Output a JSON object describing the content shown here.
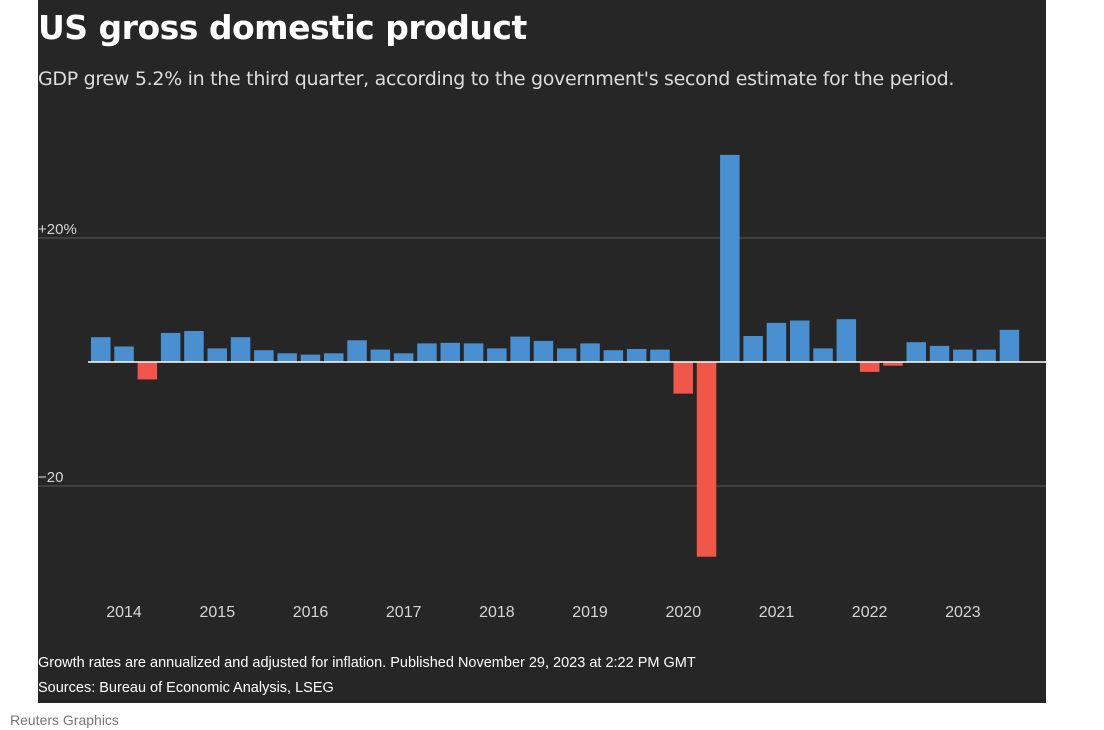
{
  "chart_data": {
    "type": "bar",
    "title": "US gross domestic product",
    "subtitle": "GDP grew 5.2% in the third quarter, according to the government's second estimate for the period.",
    "xlabel": "",
    "ylabel": "",
    "ylim": [
      -36,
      36
    ],
    "y_ticks": [
      {
        "value": 20,
        "label": "+20%"
      },
      {
        "value": -20,
        "label": "−20"
      }
    ],
    "x_tick_labels": [
      "2014",
      "2015",
      "2016",
      "2017",
      "2018",
      "2019",
      "2020",
      "2021",
      "2022",
      "2023"
    ],
    "x_tick_index": [
      1,
      5,
      9,
      13,
      17,
      21,
      25,
      29,
      33,
      37
    ],
    "categories": [
      "2013Q4",
      "2014Q1",
      "2014Q2",
      "2014Q3",
      "2014Q4",
      "2015Q1",
      "2015Q2",
      "2015Q3",
      "2015Q4",
      "2016Q1",
      "2016Q2",
      "2016Q3",
      "2016Q4",
      "2017Q1",
      "2017Q2",
      "2017Q3",
      "2017Q4",
      "2018Q1",
      "2018Q2",
      "2018Q3",
      "2018Q4",
      "2019Q1",
      "2019Q2",
      "2019Q3",
      "2019Q4",
      "2020Q1",
      "2020Q2",
      "2020Q3",
      "2020Q4",
      "2021Q1",
      "2021Q2",
      "2021Q3",
      "2021Q4",
      "2022Q1",
      "2022Q2",
      "2022Q3",
      "2022Q4",
      "2023Q1",
      "2023Q2",
      "2023Q3"
    ],
    "values": [
      4.0,
      2.5,
      -2.8,
      4.7,
      5.0,
      2.2,
      4.0,
      1.9,
      1.4,
      1.2,
      1.4,
      3.5,
      2.0,
      1.4,
      3.0,
      3.1,
      3.0,
      2.2,
      4.1,
      3.4,
      2.2,
      3.0,
      1.9,
      2.1,
      2.0,
      -5.1,
      -31.4,
      33.4,
      4.2,
      6.3,
      6.7,
      2.2,
      6.9,
      -1.6,
      -0.6,
      3.2,
      2.6,
      2.0,
      2.0,
      5.2
    ],
    "positive_color": "#4a90d0",
    "negative_color": "#f0574a",
    "note": "Growth rates are annualized and adjusted for inflation. Published November 29, 2023 at 2:22 PM GMT",
    "sources": "Sources: Bureau of Economic Analysis, LSEG"
  },
  "credit": "Reuters Graphics"
}
